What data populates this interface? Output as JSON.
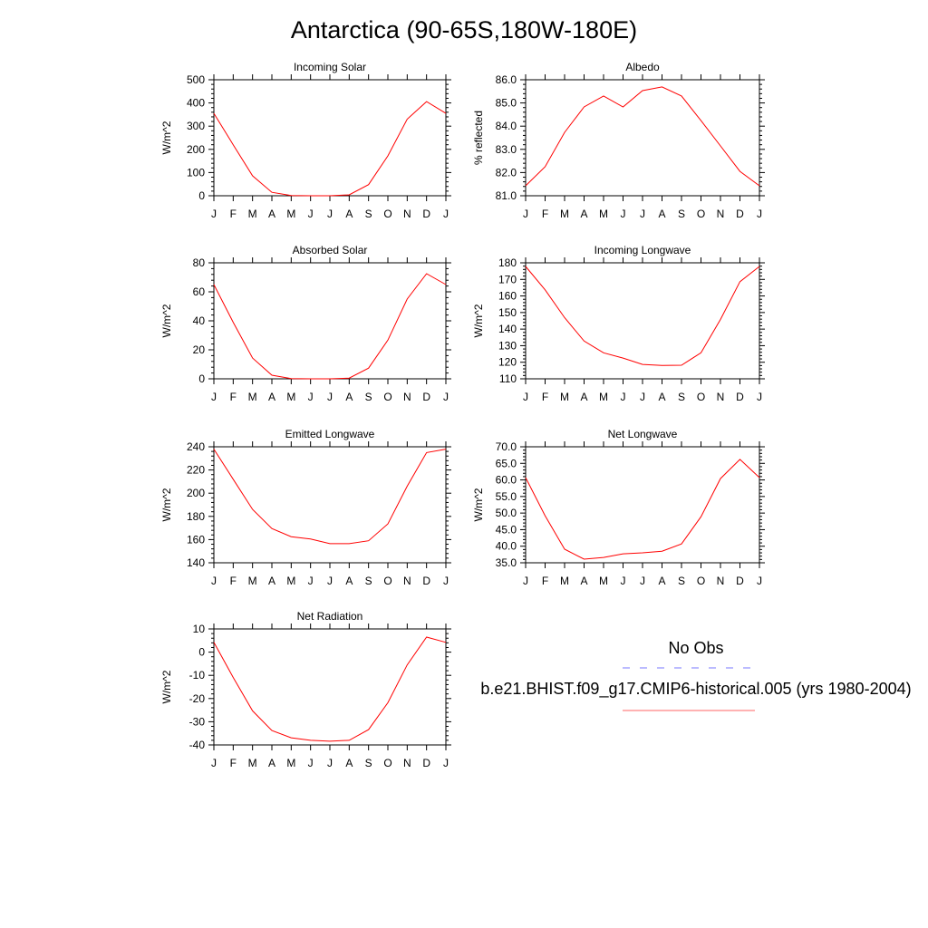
{
  "title": "Antarctica (90-65S,180W-180E)",
  "legend": {
    "entries": [
      {
        "label": "No Obs",
        "color": "#7777ff",
        "style": "dashed"
      },
      {
        "label": "b.e21.BHIST.f09_g17.CMIP6-historical.005 (yrs 1980-2004)",
        "color": "#ff0000",
        "style": "solid"
      }
    ]
  },
  "chart_data": [
    {
      "type": "line",
      "title": "Incoming Solar",
      "ylabel": "W/m^2",
      "xlabel": "",
      "categories": [
        "J",
        "F",
        "M",
        "A",
        "M",
        "J",
        "J",
        "A",
        "S",
        "O",
        "N",
        "D",
        "J"
      ],
      "ylim": [
        0,
        500
      ],
      "yticks": [
        "0",
        "100",
        "200",
        "300",
        "400",
        "500"
      ],
      "grid": false,
      "color": "#ff0000",
      "values": [
        355,
        220,
        86,
        15,
        1,
        0,
        0,
        4,
        48,
        172,
        330,
        406,
        355
      ]
    },
    {
      "type": "line",
      "title": "Albedo",
      "ylabel": "% reflected",
      "xlabel": "",
      "categories": [
        "J",
        "F",
        "M",
        "A",
        "M",
        "J",
        "J",
        "A",
        "S",
        "O",
        "N",
        "D",
        "J"
      ],
      "ylim": [
        81,
        86
      ],
      "yticks": [
        "81.0",
        "82.0",
        "83.0",
        "84.0",
        "85.0",
        "86.0"
      ],
      "grid": false,
      "color": "#ff0000",
      "values": [
        81.43,
        82.25,
        83.73,
        84.83,
        85.3,
        84.83,
        85.53,
        85.69,
        85.3,
        84.24,
        83.15,
        82.05,
        81.43
      ]
    },
    {
      "type": "line",
      "title": "Absorbed Solar",
      "ylabel": "W/m^2",
      "xlabel": "",
      "categories": [
        "J",
        "F",
        "M",
        "A",
        "M",
        "J",
        "J",
        "A",
        "S",
        "O",
        "N",
        "D",
        "J"
      ],
      "ylim": [
        0,
        80
      ],
      "yticks": [
        "0",
        "20",
        "40",
        "60",
        "80"
      ],
      "grid": false,
      "color": "#ff0000",
      "values": [
        65,
        39,
        14.3,
        2.5,
        0.2,
        0,
        0,
        0.5,
        7.4,
        26.7,
        55,
        72.5,
        65
      ]
    },
    {
      "type": "line",
      "title": "Incoming Longwave",
      "ylabel": "W/m^2",
      "xlabel": "",
      "categories": [
        "J",
        "F",
        "M",
        "A",
        "M",
        "J",
        "J",
        "A",
        "S",
        "O",
        "N",
        "D",
        "J"
      ],
      "ylim": [
        110,
        180
      ],
      "yticks": [
        "110",
        "120",
        "130",
        "140",
        "150",
        "160",
        "170",
        "180"
      ],
      "grid": false,
      "color": "#ff0000",
      "values": [
        177.8,
        163.7,
        146.9,
        132.8,
        125.7,
        122.5,
        118.7,
        118.1,
        118.2,
        125.7,
        145.8,
        168.6,
        177.8
      ]
    },
    {
      "type": "line",
      "title": "Emitted Longwave",
      "ylabel": "W/m^2",
      "xlabel": "",
      "categories": [
        "J",
        "F",
        "M",
        "A",
        "M",
        "J",
        "J",
        "A",
        "S",
        "O",
        "N",
        "D",
        "J"
      ],
      "ylim": [
        140,
        240
      ],
      "yticks": [
        "140",
        "160",
        "180",
        "200",
        "220",
        "240"
      ],
      "grid": false,
      "color": "#ff0000",
      "values": [
        238,
        212,
        186,
        169.5,
        162.5,
        160.5,
        156.5,
        156.5,
        159,
        173.5,
        206,
        235,
        238
      ]
    },
    {
      "type": "line",
      "title": "Net Longwave",
      "ylabel": "W/m^2",
      "xlabel": "",
      "categories": [
        "J",
        "F",
        "M",
        "A",
        "M",
        "J",
        "J",
        "A",
        "S",
        "O",
        "N",
        "D",
        "J"
      ],
      "ylim": [
        35,
        70
      ],
      "yticks": [
        "35.0",
        "40.0",
        "45.0",
        "50.0",
        "55.0",
        "60.0",
        "65.0",
        "70.0"
      ],
      "grid": false,
      "color": "#ff0000",
      "values": [
        60.7,
        49.2,
        39.1,
        36.1,
        36.6,
        37.7,
        38,
        38.5,
        40.7,
        48.9,
        60.4,
        66.2,
        60.7
      ]
    },
    {
      "type": "line",
      "title": "Net Radiation",
      "ylabel": "W/m^2",
      "xlabel": "",
      "categories": [
        "J",
        "F",
        "M",
        "A",
        "M",
        "J",
        "J",
        "A",
        "S",
        "O",
        "N",
        "D",
        "J"
      ],
      "ylim": [
        -40,
        10
      ],
      "yticks": [
        "-40",
        "-30",
        "-20",
        "-10",
        "0",
        "10"
      ],
      "grid": false,
      "color": "#ff0000",
      "values": [
        4.2,
        -10.9,
        -25.3,
        -33.8,
        -36.9,
        -38,
        -38.4,
        -38,
        -33.4,
        -21.8,
        -5.5,
        6.5,
        4.2
      ]
    }
  ]
}
